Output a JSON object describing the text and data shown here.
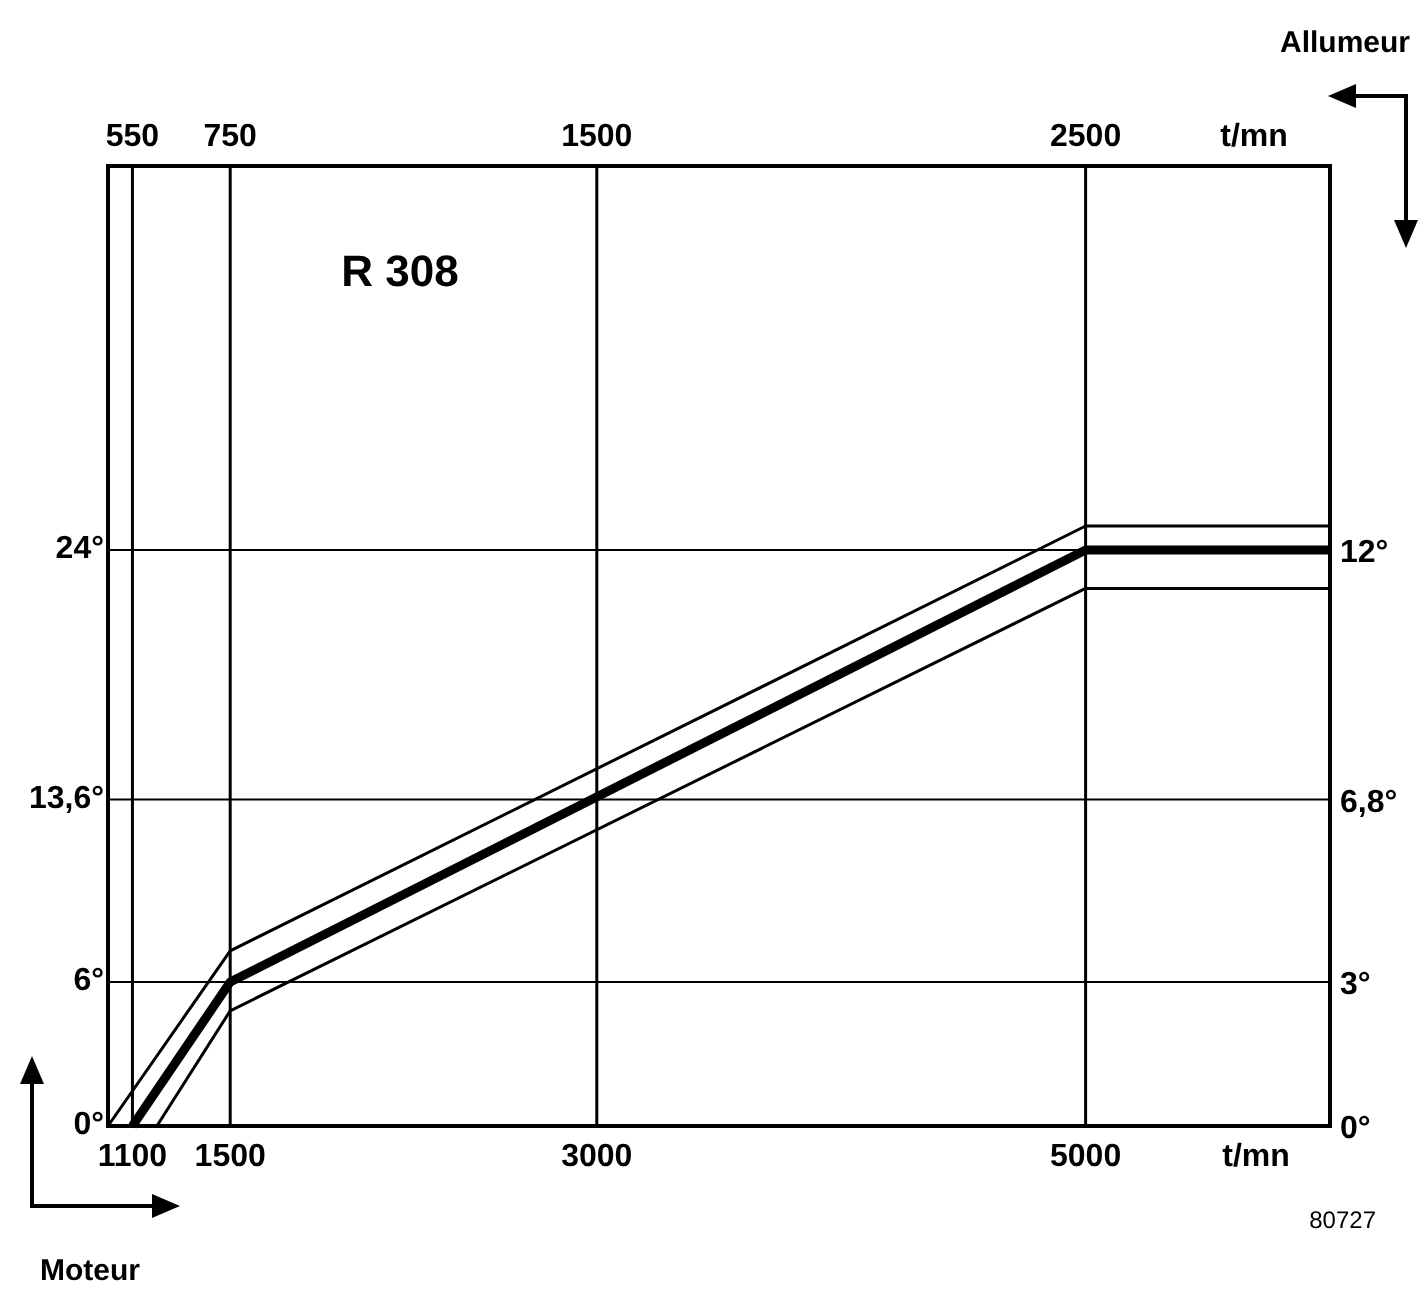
{
  "chart_data": {
    "type": "line",
    "xlabel": "Moteur",
    "x2label": "Allumeur",
    "xlim": [
      1000,
      6000
    ],
    "xticks": [
      1100,
      1500,
      3000,
      5000
    ],
    "x2lim": [
      500,
      3000
    ],
    "x2ticks": [
      550,
      750,
      1500,
      2500
    ],
    "ylim": [
      0,
      40
    ],
    "yticks": [
      {
        "value": 0,
        "label": "0°"
      },
      {
        "value": 6,
        "label": "6°"
      },
      {
        "value": 13.6,
        "label": "13,6°"
      },
      {
        "value": 24,
        "label": "24°"
      }
    ],
    "y2lim": [
      0,
      20
    ],
    "y2ticks": [
      {
        "value": 0,
        "label": "0°"
      },
      {
        "value": 3,
        "label": "3°"
      },
      {
        "value": 6.8,
        "label": "6,8°"
      },
      {
        "value": 12,
        "label": "12°"
      }
    ],
    "series": [
      {
        "color": "#000000",
        "x": [
          1000,
          1500,
          5000,
          6000
        ],
        "values": [
          0,
          7.3,
          25,
          25
        ]
      },
      {
        "color": "#000000",
        "x": [
          1100,
          1500,
          5000,
          6000
        ],
        "values": [
          0,
          6,
          24,
          24
        ]
      },
      {
        "color": "#000000",
        "x": [
          1200,
          1500,
          5000,
          6000
        ],
        "values": [
          0,
          4.8,
          22.4,
          22.4
        ]
      }
    ],
    "grid": true,
    "marker": "none",
    "line_style": "solid",
    "annotations": [
      "R 308",
      "t/mn",
      "t/mn",
      "80727"
    ]
  }
}
